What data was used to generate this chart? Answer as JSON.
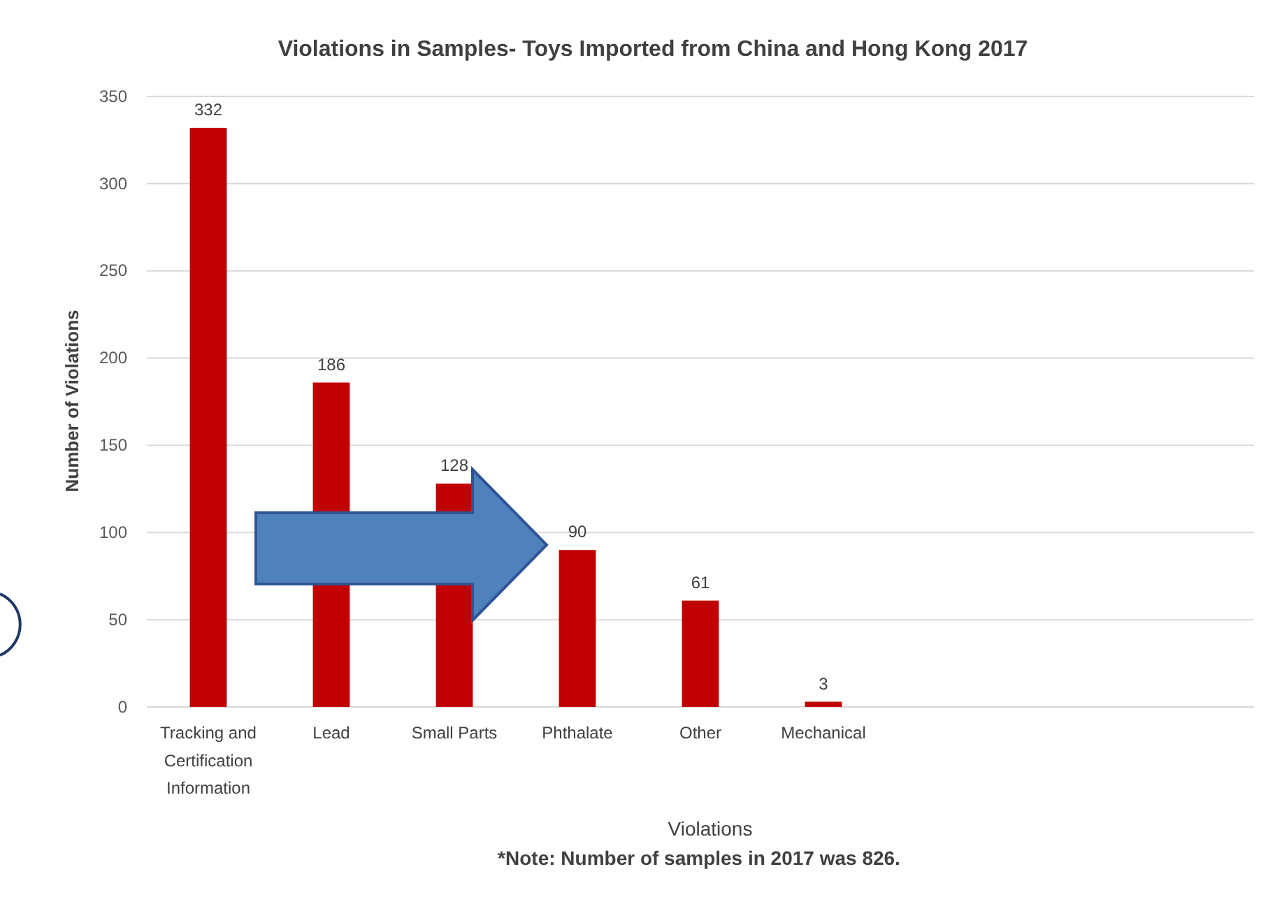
{
  "chart_data": {
    "type": "bar",
    "title": "Violations in Samples- Toys Imported from China and Hong Kong 2017",
    "xlabel": "Violations",
    "ylabel": "Number of Violations",
    "annotations": [
      "*Note: Number of samples in 2017 was 826."
    ],
    "categories": [
      "Tracking and Certification Information",
      "Lead",
      "Small Parts",
      "Phthalate",
      "Other",
      "Mechanical",
      null,
      null,
      null
    ],
    "values": [
      332,
      186,
      128,
      90,
      61,
      3,
      null,
      null,
      null
    ],
    "color": "#c00000",
    "data_labels": true,
    "ylim": [
      0,
      350
    ],
    "yticks": [
      0,
      50,
      100,
      150,
      200,
      250,
      300,
      350
    ],
    "grid": "y"
  }
}
